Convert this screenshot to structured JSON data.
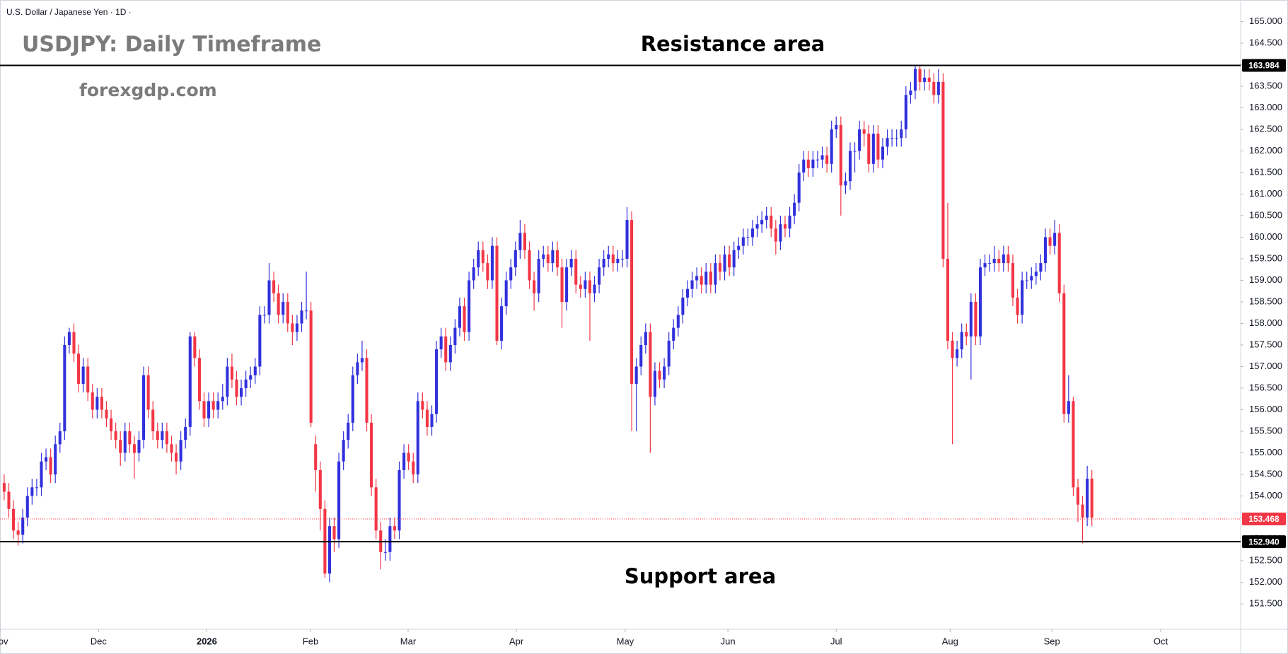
{
  "chart_data": {
    "type": "candlestick",
    "header": "U.S. Dollar / Japanese Yen · 1D ·",
    "title": "USDJPY: Daily Timeframe",
    "watermark": "forexgdp.com",
    "annotations": [
      "Resistance area",
      "Support area"
    ],
    "up_color": "#3030dc",
    "down_color": "#f23645",
    "grid": false,
    "ylim": [
      150.91,
      165.5
    ],
    "yticks": [
      {
        "value": 151.5,
        "label": "151.500"
      },
      {
        "value": 152,
        "label": "152.000"
      },
      {
        "value": 152.5,
        "label": "152.500"
      },
      {
        "value": 153,
        "label": "153.000"
      },
      {
        "value": 153.5,
        "label": "153.500"
      },
      {
        "value": 154,
        "label": "154.000"
      },
      {
        "value": 154.5,
        "label": "154.500"
      },
      {
        "value": 155,
        "label": "155.000"
      },
      {
        "value": 155.5,
        "label": "155.500"
      },
      {
        "value": 156,
        "label": "156.000"
      },
      {
        "value": 156.5,
        "label": "156.500"
      },
      {
        "value": 157,
        "label": "157.000"
      },
      {
        "value": 157.5,
        "label": "157.500"
      },
      {
        "value": 158,
        "label": "158.000"
      },
      {
        "value": 158.5,
        "label": "158.500"
      },
      {
        "value": 159,
        "label": "159.000"
      },
      {
        "value": 159.5,
        "label": "159.500"
      },
      {
        "value": 160,
        "label": "160.000"
      },
      {
        "value": 160.5,
        "label": "160.500"
      },
      {
        "value": 161,
        "label": "161.000"
      },
      {
        "value": 161.5,
        "label": "161.500"
      },
      {
        "value": 162,
        "label": "162.000"
      },
      {
        "value": 162.5,
        "label": "162.500"
      },
      {
        "value": 163,
        "label": "163.000"
      },
      {
        "value": 163.5,
        "label": "163.500"
      },
      {
        "value": 164,
        "label": "164.000"
      },
      {
        "value": 164.5,
        "label": "164.500"
      },
      {
        "value": 165,
        "label": "165.000"
      }
    ],
    "xlim": [
      -0.9,
      266
    ],
    "xticks": [
      {
        "value": -0.9,
        "label": "Nov"
      },
      {
        "value": 20.3,
        "label": "Dec"
      },
      {
        "value": 43.6,
        "label": "2026"
      },
      {
        "value": 65.9,
        "label": "Feb"
      },
      {
        "value": 86.9,
        "label": "Mar"
      },
      {
        "value": 110.2,
        "label": "Apr"
      },
      {
        "value": 133.6,
        "label": "May"
      },
      {
        "value": 155.7,
        "label": "Jun"
      },
      {
        "value": 179,
        "label": "Jul"
      },
      {
        "value": 203.5,
        "label": "Aug"
      },
      {
        "value": 225.4,
        "label": "Sep"
      },
      {
        "value": 248.8,
        "label": "Oct"
      }
    ],
    "levels": [
      {
        "value": 163.984,
        "label": "163.984",
        "color": "#000000",
        "style": "solid"
      },
      {
        "value": 152.94,
        "label": "152.940",
        "color": "#000000",
        "style": "solid"
      },
      {
        "value": 153.468,
        "label": "153.468",
        "color": "#f23645",
        "style": "dashed"
      }
    ],
    "open": [
      154.3,
      154.1,
      153.7,
      153.2,
      153.1,
      153.5,
      154.0,
      154.2,
      154.2,
      154.8,
      154.9,
      154.5,
      155.2,
      155.5,
      157.5,
      157.8,
      157.3,
      156.6,
      157.0,
      156.4,
      156.0,
      156.3,
      156.0,
      155.8,
      155.5,
      155.3,
      155.0,
      155.5,
      155.2,
      155.0,
      155.3,
      156.8,
      156.0,
      155.5,
      155.3,
      155.5,
      155.2,
      155.0,
      154.8,
      155.3,
      155.6,
      157.7,
      157.2,
      156.2,
      155.8,
      156.2,
      156.0,
      156.2,
      156.3,
      157.0,
      156.7,
      156.3,
      156.5,
      156.7,
      156.8,
      157.0,
      158.2,
      158.2,
      159.0,
      158.7,
      158.2,
      158.5,
      158.0,
      157.8,
      158.0,
      158.3,
      158.3,
      155.2,
      154.6,
      153.7,
      152.2,
      153.3,
      153.0,
      154.8,
      155.3,
      155.7,
      156.8,
      157.1,
      157.2,
      155.7,
      154.2,
      153.2,
      152.7,
      152.7,
      153.3,
      153.2,
      154.6,
      155.0,
      154.8,
      154.5,
      156.2,
      156.0,
      155.6,
      155.9,
      157.4,
      157.7,
      157.1,
      157.5,
      157.9,
      158.4,
      157.8,
      159.0,
      159.3,
      159.7,
      159.4,
      159.0,
      159.8,
      157.6,
      158.4,
      159.0,
      159.3,
      159.7,
      160.1,
      159.7,
      159.0,
      158.7,
      159.5,
      159.6,
      159.4,
      159.7,
      159.3,
      158.5,
      159.3,
      159.5,
      158.9,
      158.8,
      159.0,
      158.7,
      158.9,
      159.3,
      159.5,
      159.6,
      159.4,
      159.5,
      159.5,
      160.4,
      156.6,
      157.0,
      157.5,
      157.8,
      156.3,
      156.9,
      156.7,
      157.0,
      157.6,
      157.9,
      158.2,
      158.6,
      158.8,
      159.0,
      159.1,
      158.9,
      159.2,
      158.9,
      159.4,
      159.2,
      159.6,
      159.3,
      159.7,
      159.8,
      160.0,
      160.0,
      160.2,
      160.3,
      160.4,
      160.5,
      160.2,
      159.9,
      160.3,
      160.2,
      160.5,
      160.8,
      161.5,
      161.8,
      161.6,
      161.8,
      161.8,
      161.9,
      161.7,
      162.5,
      162.6,
      161.2,
      161.3,
      162.0,
      162.0,
      162.5,
      162.4,
      161.7,
      162.4,
      161.8,
      162.1,
      162.3,
      162.3,
      162.3,
      162.5,
      163.3,
      163.4,
      163.9,
      163.6,
      163.7,
      163.6,
      163.3,
      163.6,
      159.5,
      157.6,
      157.2,
      157.4,
      157.8,
      157.7,
      158.5,
      157.7,
      159.3,
      159.4,
      159.4,
      159.5,
      159.4,
      159.6,
      159.4,
      158.6,
      158.2,
      159.0,
      159.0,
      159.1,
      159.2,
      159.4,
      160.0,
      159.8,
      160.1,
      158.7,
      155.9,
      156.2,
      154.2,
      153.8,
      153.5,
      154.4
    ],
    "high": [
      154.5,
      154.3,
      153.9,
      153.4,
      153.7,
      154.2,
      154.4,
      154.4,
      155.0,
      155.1,
      155.1,
      155.4,
      155.7,
      157.7,
      157.9,
      158.0,
      157.5,
      157.2,
      157.2,
      156.6,
      156.5,
      156.5,
      156.2,
      156.0,
      155.7,
      155.5,
      155.7,
      155.7,
      155.4,
      155.5,
      157.0,
      157.0,
      156.2,
      155.7,
      155.7,
      155.7,
      155.4,
      155.2,
      155.5,
      155.8,
      157.8,
      157.8,
      157.4,
      156.4,
      156.4,
      156.4,
      156.4,
      156.6,
      157.2,
      157.3,
      156.9,
      156.7,
      156.9,
      157.0,
      157.2,
      158.4,
      158.4,
      159.4,
      159.2,
      158.9,
      158.7,
      158.7,
      158.2,
      158.2,
      158.5,
      159.2,
      158.5,
      155.4,
      154.8,
      153.9,
      153.5,
      153.5,
      155.0,
      155.5,
      155.9,
      157.0,
      157.3,
      157.6,
      157.4,
      155.9,
      154.4,
      153.4,
      153.0,
      153.5,
      153.5,
      154.8,
      155.2,
      155.2,
      155.0,
      156.4,
      156.4,
      156.2,
      156.1,
      157.6,
      157.9,
      157.9,
      157.7,
      158.1,
      158.6,
      158.6,
      159.2,
      159.5,
      159.9,
      159.9,
      159.6,
      160.0,
      160.0,
      158.6,
      159.2,
      159.5,
      159.9,
      160.4,
      160.3,
      159.9,
      159.2,
      159.7,
      159.8,
      159.8,
      159.9,
      159.9,
      159.5,
      159.5,
      159.7,
      159.7,
      159.1,
      159.2,
      159.2,
      159.1,
      159.5,
      159.7,
      159.8,
      159.8,
      159.7,
      159.7,
      160.7,
      160.6,
      157.2,
      157.7,
      158.0,
      158.0,
      157.1,
      157.1,
      157.2,
      157.8,
      158.1,
      158.4,
      158.8,
      159.0,
      159.2,
      159.3,
      159.3,
      159.4,
      159.4,
      159.6,
      159.6,
      159.8,
      159.8,
      159.9,
      160.0,
      160.2,
      160.2,
      160.4,
      160.5,
      160.6,
      160.7,
      160.7,
      160.4,
      160.5,
      160.5,
      160.7,
      161.0,
      161.7,
      162.0,
      162.0,
      162.0,
      162.0,
      162.1,
      162.1,
      162.7,
      162.8,
      162.8,
      161.5,
      162.2,
      162.2,
      162.7,
      162.7,
      162.6,
      162.6,
      162.6,
      162.3,
      162.5,
      162.5,
      162.5,
      162.7,
      163.5,
      163.6,
      164.0,
      164.0,
      163.9,
      163.9,
      163.8,
      163.9,
      163.8,
      160.8,
      157.8,
      157.6,
      158.0,
      158.0,
      158.7,
      158.7,
      159.5,
      159.6,
      159.6,
      159.8,
      159.7,
      159.8,
      159.8,
      159.6,
      158.8,
      159.2,
      159.2,
      159.3,
      159.4,
      159.6,
      160.2,
      160.2,
      160.4,
      160.3,
      158.9,
      156.8,
      156.3,
      154.4,
      154.0,
      154.7,
      154.6
    ],
    "low": [
      153.9,
      153.5,
      153.0,
      152.85,
      152.9,
      153.3,
      153.8,
      154.0,
      154.0,
      154.6,
      154.3,
      154.3,
      155.0,
      155.3,
      157.3,
      157.1,
      156.4,
      156.4,
      156.2,
      155.8,
      155.8,
      155.8,
      155.6,
      155.3,
      155.1,
      154.7,
      154.8,
      155.0,
      154.4,
      154.8,
      155.1,
      155.8,
      155.3,
      155.1,
      155.1,
      155.0,
      154.8,
      154.5,
      154.6,
      155.1,
      155.4,
      157.0,
      156.0,
      155.6,
      155.6,
      155.8,
      155.8,
      156.0,
      156.1,
      156.5,
      156.1,
      156.1,
      156.3,
      156.5,
      156.6,
      156.8,
      158.0,
      158.0,
      158.5,
      158.0,
      158.0,
      157.8,
      157.5,
      157.6,
      157.8,
      158.1,
      155.6,
      154.1,
      153.2,
      152.1,
      152.0,
      152.7,
      152.8,
      154.6,
      155.1,
      155.5,
      156.6,
      156.9,
      155.5,
      154.0,
      153.0,
      152.3,
      152.5,
      152.5,
      153.0,
      153.0,
      154.4,
      154.6,
      154.3,
      154.3,
      155.8,
      155.4,
      155.4,
      155.7,
      157.2,
      156.9,
      156.9,
      157.3,
      157.7,
      157.6,
      157.6,
      158.8,
      159.1,
      159.2,
      158.8,
      158.8,
      157.5,
      157.4,
      158.2,
      158.8,
      159.1,
      159.5,
      159.5,
      158.8,
      158.3,
      158.5,
      159.3,
      159.2,
      159.2,
      159.1,
      157.9,
      158.3,
      159.1,
      158.7,
      158.6,
      158.6,
      157.6,
      158.5,
      158.7,
      159.1,
      159.3,
      159.2,
      159.2,
      159.3,
      159.3,
      155.5,
      155.5,
      156.8,
      157.3,
      155.0,
      156.1,
      156.5,
      156.5,
      156.8,
      157.4,
      157.7,
      158.0,
      158.4,
      158.6,
      158.8,
      158.7,
      158.7,
      158.7,
      158.7,
      159.0,
      159.0,
      159.1,
      159.1,
      159.5,
      159.6,
      159.8,
      159.8,
      160.0,
      160.1,
      160.2,
      160.0,
      159.6,
      159.7,
      160.0,
      160.0,
      160.3,
      160.6,
      161.3,
      161.4,
      161.4,
      161.6,
      161.6,
      161.5,
      161.5,
      162.3,
      160.5,
      161.0,
      161.1,
      161.5,
      161.8,
      162.1,
      161.5,
      161.5,
      161.6,
      161.6,
      161.9,
      162.1,
      162.1,
      162.1,
      162.3,
      163.1,
      163.2,
      163.4,
      163.4,
      163.4,
      163.1,
      163.1,
      159.3,
      157.4,
      155.2,
      157.0,
      157.2,
      157.5,
      156.7,
      157.5,
      157.5,
      159.1,
      159.2,
      159.2,
      159.2,
      159.2,
      159.2,
      158.4,
      158.0,
      158.0,
      158.8,
      158.8,
      158.9,
      159.0,
      159.2,
      159.6,
      159.6,
      158.5,
      155.7,
      155.7,
      154.0,
      153.4,
      152.9,
      153.3,
      153.3
    ],
    "close": [
      154.1,
      153.7,
      153.2,
      153.1,
      153.5,
      154.0,
      154.2,
      154.2,
      154.8,
      154.9,
      154.5,
      155.2,
      155.5,
      157.5,
      157.8,
      157.3,
      156.6,
      157.0,
      156.4,
      156.0,
      156.3,
      156.0,
      155.8,
      155.5,
      155.3,
      155.0,
      155.5,
      155.2,
      155.0,
      155.3,
      156.8,
      156.0,
      155.5,
      155.3,
      155.5,
      155.2,
      155.0,
      154.8,
      155.3,
      155.6,
      157.7,
      157.2,
      156.2,
      155.8,
      156.2,
      156.0,
      156.2,
      156.3,
      157.0,
      156.7,
      156.3,
      156.5,
      156.7,
      156.8,
      157.0,
      158.2,
      158.2,
      159.0,
      158.7,
      158.2,
      158.5,
      158.0,
      157.8,
      158.0,
      158.3,
      158.3,
      155.7,
      154.6,
      153.7,
      152.2,
      153.3,
      153.0,
      154.8,
      155.3,
      155.7,
      156.8,
      157.1,
      157.2,
      155.7,
      154.2,
      153.2,
      152.7,
      152.7,
      153.3,
      153.2,
      154.6,
      155.0,
      154.8,
      154.5,
      156.2,
      156.0,
      155.6,
      155.9,
      157.4,
      157.7,
      157.1,
      157.5,
      157.9,
      158.4,
      157.8,
      159.0,
      159.3,
      159.7,
      159.4,
      159.0,
      159.8,
      157.6,
      158.4,
      159.0,
      159.3,
      159.7,
      160.1,
      159.7,
      159.0,
      158.7,
      159.5,
      159.6,
      159.4,
      159.7,
      159.3,
      158.5,
      159.3,
      159.5,
      158.9,
      158.8,
      159.0,
      158.7,
      158.9,
      159.3,
      159.5,
      159.6,
      159.4,
      159.5,
      159.5,
      160.4,
      156.6,
      157.0,
      157.5,
      157.8,
      156.3,
      156.9,
      156.7,
      157.0,
      157.6,
      157.9,
      158.2,
      158.6,
      158.8,
      159.0,
      159.1,
      158.9,
      159.2,
      158.9,
      159.4,
      159.2,
      159.6,
      159.3,
      159.7,
      159.8,
      160.0,
      160.0,
      160.2,
      160.3,
      160.4,
      160.5,
      160.2,
      159.9,
      160.3,
      160.2,
      160.5,
      160.8,
      161.5,
      161.8,
      161.6,
      161.8,
      161.8,
      161.9,
      161.7,
      162.5,
      162.6,
      161.2,
      161.3,
      162.0,
      162.0,
      162.5,
      162.4,
      161.7,
      162.4,
      161.8,
      162.1,
      162.3,
      162.3,
      162.3,
      162.5,
      163.3,
      163.4,
      163.9,
      163.6,
      163.7,
      163.6,
      163.3,
      163.6,
      159.5,
      157.6,
      157.2,
      157.4,
      157.8,
      157.7,
      158.5,
      157.7,
      159.3,
      159.4,
      159.4,
      159.5,
      159.4,
      159.6,
      159.4,
      158.6,
      158.2,
      159.0,
      159.0,
      159.1,
      159.2,
      159.4,
      160.0,
      159.8,
      160.1,
      158.7,
      155.9,
      156.2,
      154.2,
      153.8,
      153.5,
      154.4,
      153.5
    ]
  }
}
